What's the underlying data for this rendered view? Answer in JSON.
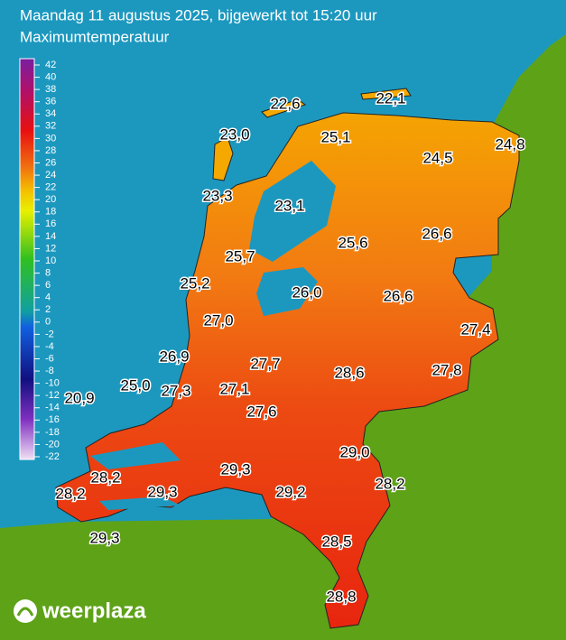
{
  "header": {
    "title": "Maandag 11 augustus 2025, bijgewerkt tot 15:20 uur",
    "subtitle": "Maximumtemperatuur"
  },
  "legend": {
    "ticks": [
      42,
      40,
      38,
      36,
      34,
      32,
      30,
      28,
      26,
      24,
      22,
      20,
      18,
      16,
      14,
      12,
      10,
      8,
      6,
      4,
      2,
      0,
      -2,
      -4,
      -6,
      -8,
      -10,
      -12,
      -14,
      -16,
      -18,
      -20,
      -22
    ]
  },
  "temperatures": [
    "22,6",
    "22,1",
    "23,0",
    "25,1",
    "24,8",
    "24,5",
    "23,3",
    "23,1",
    "25,6",
    "26,6",
    "25,7",
    "25,2",
    "26,0",
    "26,6",
    "27,0",
    "27,4",
    "26,9",
    "27,7",
    "28,6",
    "27,8",
    "25,0",
    "27,3",
    "27,1",
    "20,9",
    "27,6",
    "29,0",
    "29,3",
    "28,2",
    "28,2",
    "29,3",
    "29,2",
    "28,2",
    "29,3",
    "28,5",
    "28,8"
  ],
  "logo": "weerplaza"
}
